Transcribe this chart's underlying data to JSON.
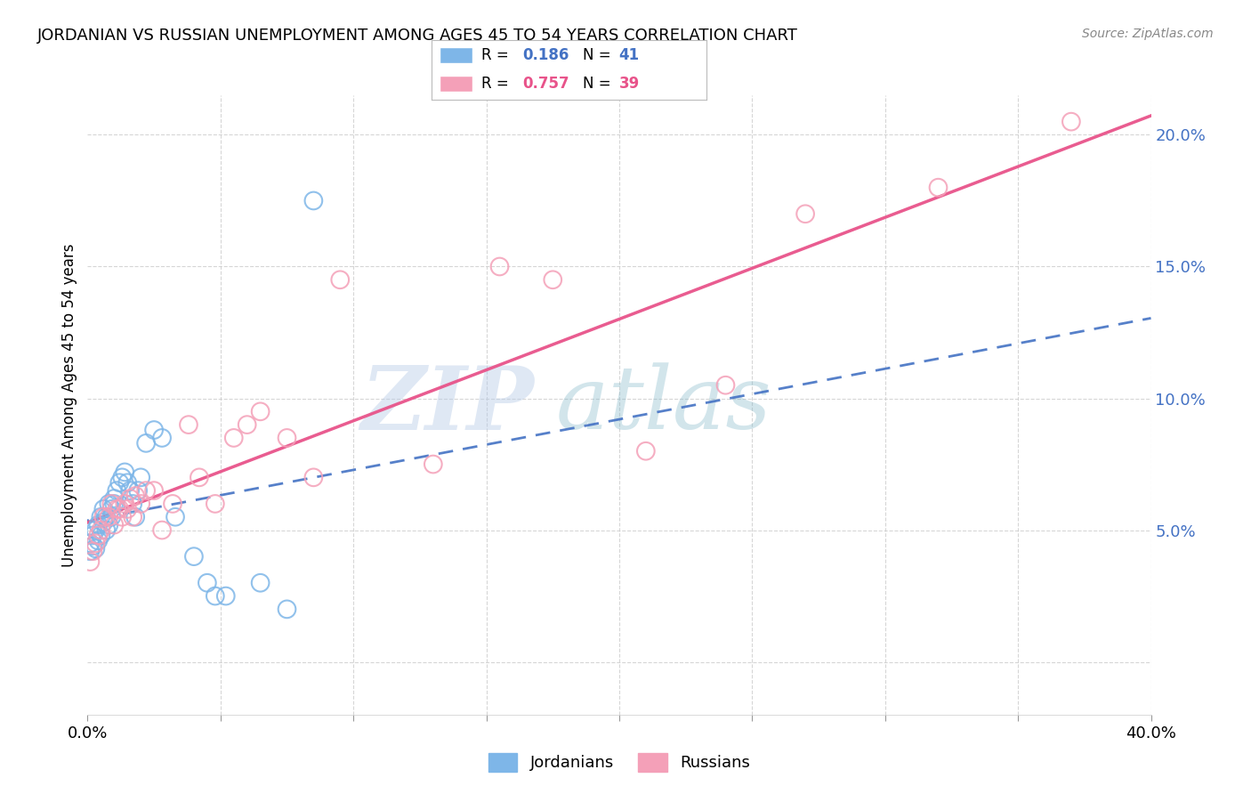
{
  "title": "JORDANIAN VS RUSSIAN UNEMPLOYMENT AMONG AGES 45 TO 54 YEARS CORRELATION CHART",
  "source": "Source: ZipAtlas.com",
  "ylabel": "Unemployment Among Ages 45 to 54 years",
  "xlim": [
    0.0,
    0.4
  ],
  "ylim": [
    -0.02,
    0.215
  ],
  "jordan_color": "#7EB6E8",
  "russia_color": "#F4A0B8",
  "jordan_line_color": "#4472C4",
  "russia_line_color": "#E8538A",
  "jordan_R": "0.186",
  "jordan_N": "41",
  "russia_R": "0.757",
  "russia_N": "39",
  "watermark_zip": "ZIP",
  "watermark_atlas": "atlas",
  "background_color": "#FFFFFF",
  "grid_color": "#CCCCCC",
  "jordanians_x": [
    0.001,
    0.001,
    0.002,
    0.002,
    0.003,
    0.003,
    0.004,
    0.004,
    0.005,
    0.005,
    0.006,
    0.006,
    0.007,
    0.007,
    0.008,
    0.008,
    0.009,
    0.009,
    0.01,
    0.01,
    0.011,
    0.012,
    0.013,
    0.014,
    0.015,
    0.016,
    0.017,
    0.018,
    0.019,
    0.02,
    0.022,
    0.025,
    0.028,
    0.033,
    0.04,
    0.045,
    0.048,
    0.052,
    0.065,
    0.075,
    0.085
  ],
  "jordanians_y": [
    0.045,
    0.042,
    0.048,
    0.044,
    0.05,
    0.043,
    0.052,
    0.046,
    0.055,
    0.048,
    0.053,
    0.058,
    0.05,
    0.055,
    0.06,
    0.052,
    0.055,
    0.058,
    0.062,
    0.06,
    0.065,
    0.068,
    0.07,
    0.072,
    0.068,
    0.065,
    0.06,
    0.055,
    0.065,
    0.07,
    0.083,
    0.088,
    0.085,
    0.055,
    0.04,
    0.03,
    0.025,
    0.025,
    0.03,
    0.02,
    0.175
  ],
  "russians_x": [
    0.001,
    0.002,
    0.003,
    0.004,
    0.005,
    0.006,
    0.008,
    0.009,
    0.01,
    0.011,
    0.012,
    0.013,
    0.014,
    0.015,
    0.016,
    0.017,
    0.018,
    0.02,
    0.022,
    0.025,
    0.028,
    0.032,
    0.038,
    0.042,
    0.048,
    0.055,
    0.06,
    0.065,
    0.075,
    0.085,
    0.095,
    0.13,
    0.155,
    0.175,
    0.21,
    0.24,
    0.27,
    0.32,
    0.37
  ],
  "russians_y": [
    0.038,
    0.042,
    0.045,
    0.048,
    0.05,
    0.055,
    0.055,
    0.06,
    0.052,
    0.058,
    0.058,
    0.055,
    0.06,
    0.058,
    0.062,
    0.055,
    0.063,
    0.06,
    0.065,
    0.065,
    0.05,
    0.06,
    0.09,
    0.07,
    0.06,
    0.085,
    0.09,
    0.095,
    0.085,
    0.07,
    0.145,
    0.075,
    0.15,
    0.145,
    0.08,
    0.105,
    0.17,
    0.18,
    0.205
  ]
}
